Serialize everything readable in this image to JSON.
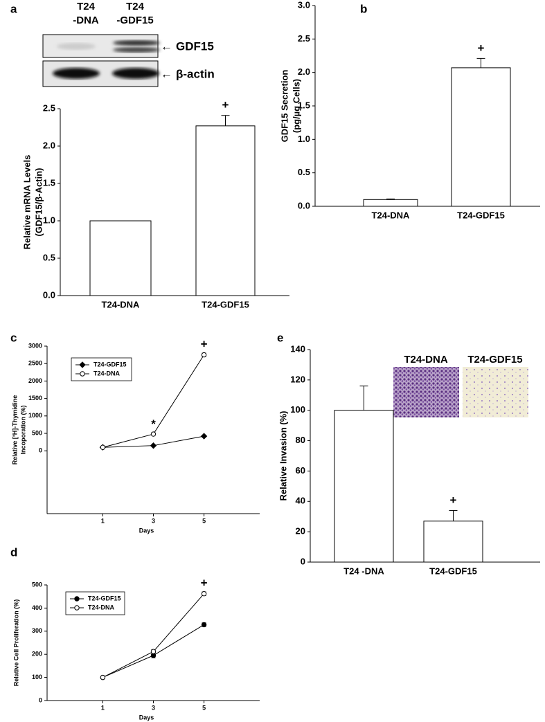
{
  "chart_data": [
    {
      "type": "bar",
      "panel": "a",
      "ylabel": [
        "Relative mRNA Levels",
        "(GDF15/β-Actin)"
      ],
      "categories": [
        "T24-DNA",
        "T24-GDF15"
      ],
      "values": [
        1.0,
        2.27
      ],
      "errors": [
        0,
        0.14
      ],
      "color": "#ffffff",
      "ylim": [
        0,
        2.5
      ],
      "yticks": [
        {
          "value": 0,
          "label": "0.0"
        },
        0.5,
        {
          "value": 1,
          "label": "1.0"
        },
        1.5,
        {
          "value": 2,
          "label": "2.0"
        },
        2.5
      ],
      "annotations": [
        {
          "text": "+",
          "x": "T24-GDF15"
        }
      ],
      "blot": {
        "lanes": [
          [
            "T24",
            "-DNA"
          ],
          [
            "T24",
            "-GDF15"
          ]
        ],
        "bands": [
          "GDF15",
          "β-actin"
        ]
      }
    },
    {
      "type": "bar",
      "panel": "b",
      "ylabel": [
        "GDF15 Secretion",
        "(pg/µg Cells)"
      ],
      "categories": [
        "T24-DNA",
        "T24-GDF15"
      ],
      "values": [
        0.1,
        2.07
      ],
      "errors": [
        0.01,
        0.14
      ],
      "color": "#ffffff",
      "ylim": [
        0,
        3
      ],
      "yticks": [
        {
          "value": 0,
          "label": "0.0"
        },
        0.5,
        {
          "value": 1,
          "label": "1.0"
        },
        1.5,
        {
          "value": 2,
          "label": "2.0"
        },
        2.5,
        {
          "value": 3,
          "label": "3.0"
        }
      ],
      "annotations": [
        {
          "text": "+",
          "x": "T24-GDF15"
        }
      ]
    },
    {
      "type": "line",
      "panel": "c",
      "ylabel": [
        "Relative [³H]-Thymidine",
        "Incoporation (%)"
      ],
      "xlabel": "Days",
      "x": [
        1,
        3,
        5
      ],
      "series": [
        {
          "name": "T24-GDF15",
          "color": "#000000",
          "marker": "diamond",
          "filled": true,
          "values": [
            100,
            150,
            420
          ],
          "errors": [
            5,
            10,
            15
          ]
        },
        {
          "name": "T24-DNA",
          "color": "#000000",
          "marker": "circle",
          "filled": false,
          "values": [
            100,
            480,
            2750
          ],
          "errors": [
            5,
            30,
            50
          ]
        }
      ],
      "xlim": [
        -1.2,
        7.2
      ],
      "xticks": [
        1,
        3,
        5
      ],
      "ylim": [
        -1800,
        3000
      ],
      "yticks": [
        0,
        500,
        1000,
        1500,
        2000,
        2500,
        3000
      ],
      "legend": "upper left",
      "annotations": [
        {
          "text": "*",
          "x": 3
        },
        {
          "text": "+",
          "x": 5
        }
      ]
    },
    {
      "type": "line",
      "panel": "d",
      "ylabel": [
        "Relative Cell Proliferation (%)"
      ],
      "xlabel": "Days",
      "x": [
        1,
        3,
        5
      ],
      "series": [
        {
          "name": "T24-GDF15",
          "color": "#000000",
          "marker": "circle",
          "filled": true,
          "values": [
            100,
            195,
            328
          ],
          "errors": [
            5,
            10,
            8
          ]
        },
        {
          "name": "T24-DNA",
          "color": "#000000",
          "marker": "circle",
          "filled": false,
          "values": [
            100,
            212,
            462
          ],
          "errors": [
            5,
            8,
            8
          ]
        }
      ],
      "xlim": [
        -1.2,
        7.2
      ],
      "xticks": [
        1,
        3,
        5
      ],
      "ylim": [
        0,
        500
      ],
      "yticks": [
        0,
        100,
        200,
        300,
        400,
        500
      ],
      "legend": "upper left",
      "annotations": [
        {
          "text": "+",
          "x": 5
        }
      ]
    },
    {
      "type": "bar",
      "panel": "e",
      "ylabel": [
        "Relative Invasion (%)"
      ],
      "categories": [
        "T24 -DNA",
        "T24-GDF15"
      ],
      "values": [
        100,
        27
      ],
      "errors": [
        16,
        7
      ],
      "color": "#ffffff",
      "ylim": [
        0,
        140
      ],
      "yticks": [
        0,
        20,
        40,
        60,
        80,
        100,
        120,
        140
      ],
      "annotations": [
        {
          "text": "+",
          "x": "T24-GDF15"
        }
      ],
      "inset": {
        "labels": [
          "T24-DNA",
          "T24-GDF15"
        ]
      }
    }
  ]
}
